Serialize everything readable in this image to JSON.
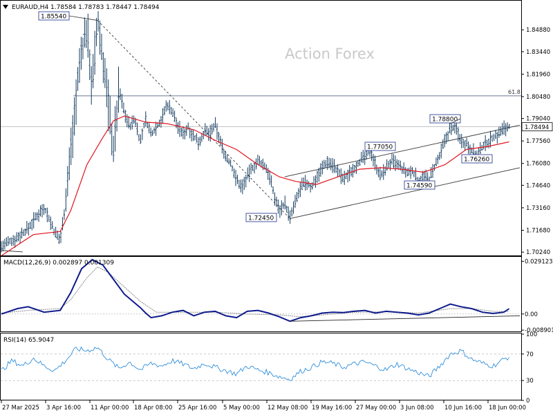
{
  "header": {
    "symbol_line": "EURAUD,H4  1.78584 1.78783 1.78447 1.78494",
    "watermark": "Action Forex",
    "menu_arrow": "triangle-down-icon"
  },
  "colors": {
    "price_bars": "#123a5e",
    "ma_line": "#e0141e",
    "trend_line": "#333333",
    "macd_line": "#0d1a8c",
    "macd_signal": "#8a8a8a",
    "rsi_line": "#2f8fdc",
    "watermark": "#c9c9c9"
  },
  "chart_data": [
    {
      "panel": "price",
      "type": "line",
      "title": "EURAUD,H4",
      "ohlc_header": {
        "open": 1.78584,
        "high": 1.78783,
        "low": 1.78447,
        "close": 1.78494
      },
      "ylim": [
        1.7002,
        1.8648
      ],
      "yticks": [
        "1.84880",
        "1.83440",
        "1.81960",
        "1.80480",
        "1.79040",
        "1.77560",
        "1.76080",
        "1.74640",
        "1.73160",
        "1.71680",
        "1.70240"
      ],
      "xticks": [
        "27 Mar 2025",
        "3 Apr 16:00",
        "11 Apr 00:00",
        "18 Apr 08:00",
        "25 Apr 16:00",
        "5 May 00:00",
        "12 May 08:00",
        "19 May 16:00",
        "27 May 00:00",
        "3 Jun 08:00",
        "10 Jun 16:00",
        "18 Jun 00:00"
      ],
      "current_price": "1.78494",
      "fib_label": "61.8",
      "fib_level": 1.8053,
      "annotations": [
        {
          "label": "1.85540",
          "value": 1.8554
        },
        {
          "label": "1.72450",
          "value": 1.7245
        },
        {
          "label": "1.77050",
          "value": 1.7705
        },
        {
          "label": "1.74590",
          "value": 1.7459
        },
        {
          "label": "1.78800",
          "value": 1.788
        },
        {
          "label": "1.76260",
          "value": 1.7626
        }
      ],
      "price_path": [
        [
          0,
          1.706
        ],
        [
          3,
          1.712
        ],
        [
          5,
          1.718
        ],
        [
          7,
          1.728
        ],
        [
          8,
          1.732
        ],
        [
          9,
          1.724
        ],
        [
          10,
          1.715
        ],
        [
          11,
          1.71
        ],
        [
          12,
          1.735
        ],
        [
          13,
          1.77
        ],
        [
          14,
          1.805
        ],
        [
          15,
          1.835
        ],
        [
          16,
          1.85
        ],
        [
          17,
          1.81
        ],
        [
          18,
          1.855
        ],
        [
          19,
          1.83
        ],
        [
          20,
          1.8
        ],
        [
          21,
          1.77
        ],
        [
          22,
          1.81
        ],
        [
          23,
          1.795
        ],
        [
          24,
          1.785
        ],
        [
          25,
          1.79
        ],
        [
          26,
          1.775
        ],
        [
          27,
          1.79
        ],
        [
          28,
          1.78
        ],
        [
          29,
          1.785
        ],
        [
          30,
          1.79
        ],
        [
          31,
          1.8
        ],
        [
          32,
          1.795
        ],
        [
          33,
          1.785
        ],
        [
          34,
          1.78
        ],
        [
          35,
          1.785
        ],
        [
          36,
          1.778
        ],
        [
          37,
          1.775
        ],
        [
          38,
          1.782
        ],
        [
          39,
          1.78
        ],
        [
          40,
          1.786
        ],
        [
          41,
          1.775
        ],
        [
          42,
          1.765
        ],
        [
          43,
          1.76
        ],
        [
          44,
          1.75
        ],
        [
          45,
          1.745
        ],
        [
          46,
          1.752
        ],
        [
          47,
          1.758
        ],
        [
          48,
          1.762
        ],
        [
          49,
          1.76
        ],
        [
          50,
          1.755
        ],
        [
          51,
          1.74
        ],
        [
          52,
          1.73
        ],
        [
          53,
          1.735
        ],
        [
          54,
          1.7245
        ],
        [
          55,
          1.735
        ],
        [
          56,
          1.745
        ],
        [
          57,
          1.748
        ],
        [
          58,
          1.745
        ],
        [
          59,
          1.752
        ],
        [
          60,
          1.758
        ],
        [
          61,
          1.762
        ],
        [
          62,
          1.76
        ],
        [
          63,
          1.755
        ],
        [
          64,
          1.75
        ],
        [
          65,
          1.754
        ],
        [
          66,
          1.758
        ],
        [
          67,
          1.762
        ],
        [
          68,
          1.765
        ],
        [
          69,
          1.77
        ],
        [
          70,
          1.76
        ],
        [
          71,
          1.752
        ],
        [
          72,
          1.758
        ],
        [
          73,
          1.762
        ],
        [
          74,
          1.76
        ],
        [
          75,
          1.757
        ],
        [
          76,
          1.754
        ],
        [
          77,
          1.756
        ],
        [
          78,
          1.749
        ],
        [
          79,
          1.752
        ],
        [
          80,
          1.75
        ],
        [
          81,
          1.758
        ],
        [
          82,
          1.765
        ],
        [
          83,
          1.776
        ],
        [
          84,
          1.784
        ],
        [
          85,
          1.785
        ],
        [
          86,
          1.776
        ],
        [
          87,
          1.774
        ],
        [
          88,
          1.77
        ],
        [
          89,
          1.765
        ],
        [
          90,
          1.772
        ],
        [
          91,
          1.775
        ],
        [
          92,
          1.778
        ],
        [
          93,
          1.78
        ],
        [
          94,
          1.784
        ],
        [
          95,
          1.785
        ]
      ],
      "ma_path": [
        [
          0,
          1.7
        ],
        [
          6,
          1.714
        ],
        [
          11,
          1.716
        ],
        [
          13,
          1.73
        ],
        [
          16,
          1.76
        ],
        [
          19,
          1.778
        ],
        [
          21,
          1.789
        ],
        [
          23,
          1.792
        ],
        [
          27,
          1.788
        ],
        [
          31,
          1.787
        ],
        [
          36,
          1.783
        ],
        [
          40,
          1.776
        ],
        [
          44,
          1.77
        ],
        [
          48,
          1.76
        ],
        [
          52,
          1.752
        ],
        [
          55,
          1.749
        ],
        [
          59,
          1.747
        ],
        [
          63,
          1.752
        ],
        [
          67,
          1.757
        ],
        [
          71,
          1.758
        ],
        [
          75,
          1.757
        ],
        [
          79,
          1.755
        ],
        [
          83,
          1.76
        ],
        [
          87,
          1.77
        ],
        [
          91,
          1.772
        ],
        [
          95,
          1.775
        ]
      ],
      "trendlines": [
        {
          "from": [
            18,
            1.855
          ],
          "to": [
            54,
            1.7245
          ],
          "style": "dashed"
        },
        {
          "from": [
            54,
            1.7245
          ],
          "to": [
            97,
            1.758
          ],
          "style": "solid"
        },
        {
          "from": [
            53,
            1.752
          ],
          "to": [
            97,
            1.786
          ],
          "style": "solid"
        },
        {
          "from": [
            0,
            1.7035
          ],
          "to": [
            4,
            1.7025
          ],
          "style": "solid"
        }
      ]
    },
    {
      "panel": "macd",
      "type": "line",
      "title": "MACD(12,26,9) 0.002897 0.001309",
      "ylim": [
        -0.0096,
        0.0312
      ],
      "yticks": [
        "0.029123",
        "0.00",
        "-0.008901"
      ],
      "macd_path": [
        [
          0,
          0
        ],
        [
          3,
          0.003
        ],
        [
          5,
          0.004
        ],
        [
          8,
          0.001
        ],
        [
          11,
          0.002
        ],
        [
          13,
          0.012
        ],
        [
          15,
          0.025
        ],
        [
          17,
          0.03
        ],
        [
          19,
          0.027
        ],
        [
          21,
          0.019
        ],
        [
          23,
          0.011
        ],
        [
          25,
          0.006
        ],
        [
          26,
          0.0035
        ],
        [
          27,
          0.0005
        ],
        [
          28,
          -0.002
        ],
        [
          30,
          -0.001
        ],
        [
          32,
          0.001
        ],
        [
          34,
          0.002
        ],
        [
          36,
          -0.001
        ],
        [
          38,
          0.001
        ],
        [
          40,
          0.0015
        ],
        [
          42,
          -0.001
        ],
        [
          44,
          -0.002
        ],
        [
          46,
          0.0015
        ],
        [
          48,
          0.002
        ],
        [
          50,
          0.0005
        ],
        [
          52,
          -0.0015
        ],
        [
          54,
          -0.004
        ],
        [
          56,
          -0.002
        ],
        [
          58,
          -0.001
        ],
        [
          60,
          0.0005
        ],
        [
          62,
          0.001
        ],
        [
          64,
          0.0008
        ],
        [
          66,
          0.0015
        ],
        [
          68,
          0.002
        ],
        [
          70,
          0.0005
        ],
        [
          72,
          0.0015
        ],
        [
          74,
          0.001
        ],
        [
          76,
          0.0005
        ],
        [
          78,
          -0.0005
        ],
        [
          80,
          0.0005
        ],
        [
          82,
          0.003
        ],
        [
          84,
          0.0055
        ],
        [
          86,
          0.004
        ],
        [
          88,
          0.003
        ],
        [
          90,
          0.001
        ],
        [
          92,
          0.0003
        ],
        [
          94,
          0.001
        ],
        [
          95,
          0.0029
        ]
      ],
      "signal_path": [
        [
          0,
          0.0005
        ],
        [
          5,
          0.002
        ],
        [
          11,
          0.003
        ],
        [
          13,
          0.008
        ],
        [
          16,
          0.02
        ],
        [
          18,
          0.026
        ],
        [
          20,
          0.023
        ],
        [
          23,
          0.015
        ],
        [
          26,
          0.007
        ],
        [
          29,
          0.001
        ],
        [
          34,
          0.001
        ],
        [
          40,
          0.001
        ],
        [
          46,
          0
        ],
        [
          52,
          -0.0005
        ],
        [
          56,
          -0.0015
        ],
        [
          60,
          -0.0005
        ],
        [
          66,
          0.001
        ],
        [
          72,
          0.0012
        ],
        [
          78,
          0.0005
        ],
        [
          84,
          0.003
        ],
        [
          88,
          0.003
        ],
        [
          92,
          0.0015
        ],
        [
          95,
          0.0013
        ]
      ],
      "trendlines": [
        {
          "from": [
            54,
            -0.004
          ],
          "to": [
            97,
            -0.001
          ],
          "style": "solid"
        }
      ]
    },
    {
      "panel": "rsi",
      "type": "line",
      "title": "RSI(14) 65.9047",
      "ylim": [
        0,
        100
      ],
      "yticks": [
        "100",
        "70",
        "30",
        "0"
      ],
      "levels": [
        70,
        30
      ],
      "rsi_path": [
        [
          0,
          45
        ],
        [
          2,
          60
        ],
        [
          4,
          52
        ],
        [
          6,
          64
        ],
        [
          8,
          52
        ],
        [
          10,
          45
        ],
        [
          12,
          60
        ],
        [
          14,
          78
        ],
        [
          16,
          75
        ],
        [
          18,
          80
        ],
        [
          20,
          62
        ],
        [
          22,
          48
        ],
        [
          24,
          58
        ],
        [
          26,
          46
        ],
        [
          28,
          56
        ],
        [
          30,
          52
        ],
        [
          32,
          60
        ],
        [
          34,
          55
        ],
        [
          36,
          48
        ],
        [
          38,
          56
        ],
        [
          40,
          50
        ],
        [
          42,
          45
        ],
        [
          44,
          40
        ],
        [
          46,
          52
        ],
        [
          48,
          46
        ],
        [
          50,
          42
        ],
        [
          52,
          36
        ],
        [
          54,
          32
        ],
        [
          56,
          44
        ],
        [
          58,
          50
        ],
        [
          60,
          58
        ],
        [
          62,
          56
        ],
        [
          64,
          50
        ],
        [
          66,
          55
        ],
        [
          68,
          58
        ],
        [
          70,
          52
        ],
        [
          72,
          46
        ],
        [
          74,
          55
        ],
        [
          76,
          48
        ],
        [
          78,
          42
        ],
        [
          80,
          36
        ],
        [
          82,
          52
        ],
        [
          84,
          70
        ],
        [
          86,
          75
        ],
        [
          88,
          62
        ],
        [
          90,
          56
        ],
        [
          92,
          52
        ],
        [
          94,
          62
        ],
        [
          95,
          66
        ]
      ]
    }
  ]
}
